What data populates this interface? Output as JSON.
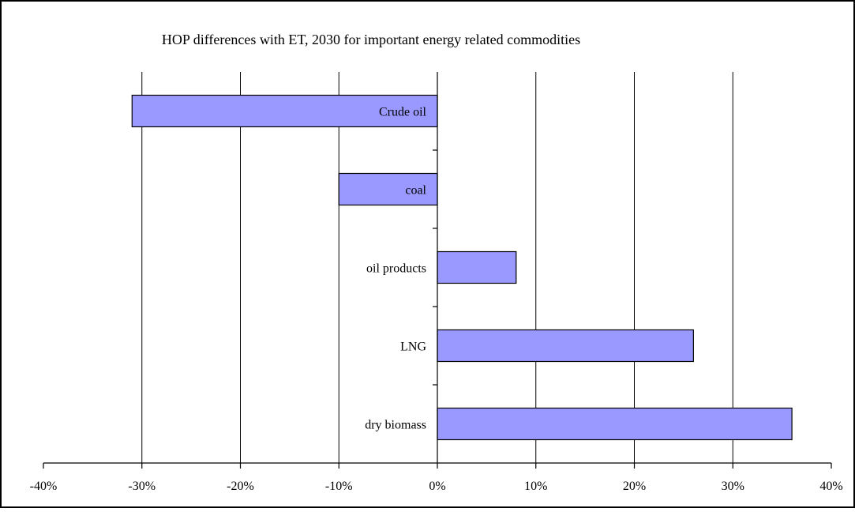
{
  "chart_data": {
    "type": "bar",
    "orientation": "horizontal",
    "title": "HOP differences with ET, 2030 for important energy related commodities",
    "categories": [
      "Crude oil",
      "coal",
      "oil products",
      "LNG",
      "dry biomass"
    ],
    "values": [
      -0.31,
      -0.1,
      0.08,
      0.26,
      0.36
    ],
    "xlim": [
      -0.4,
      0.4
    ],
    "x_ticks": [
      -0.4,
      -0.3,
      -0.2,
      -0.1,
      0,
      0.1,
      0.2,
      0.3,
      0.4
    ],
    "x_tick_labels": [
      "-40%",
      "-30%",
      "-20%",
      "-10%",
      "0%",
      "10%",
      "20%",
      "30%",
      "40%"
    ],
    "grid": "vertical",
    "legend": "none",
    "bar_color": "#9999ff",
    "bar_edge_color": "#000000"
  }
}
